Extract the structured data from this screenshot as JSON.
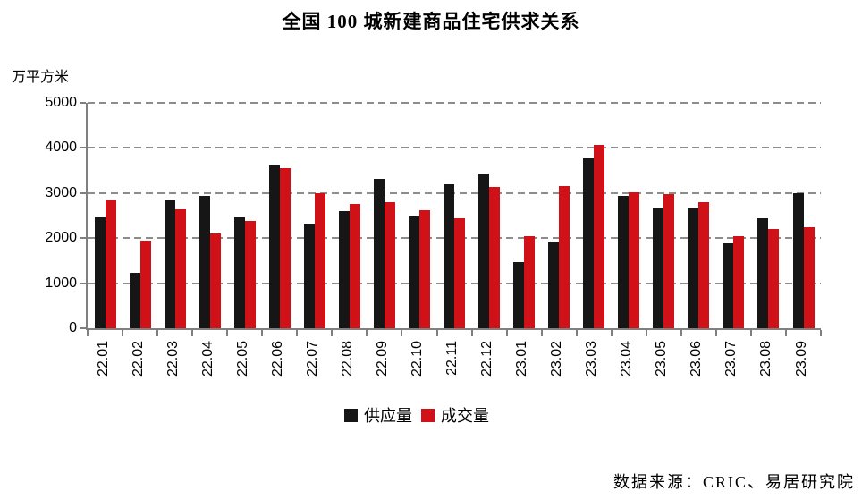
{
  "title": "全国 100 城新建商品住宅供求关系",
  "y_axis": {
    "unit_label": "万平方米",
    "tick_labels": [
      "5000",
      "4000",
      "3000",
      "2000",
      "1000",
      "0"
    ]
  },
  "legend": {
    "supply_label": "供应量",
    "transaction_label": "成交量"
  },
  "source_note": "数据来源：CRIC、易居研究院",
  "colors": {
    "supply": "#161616",
    "transaction": "#d01118",
    "grid": "#8c8c8c",
    "axis": "#7f7f7f"
  },
  "chart_data": {
    "type": "bar",
    "title": "全国 100 城新建商品住宅供求关系",
    "ylabel": "万平方米",
    "ylim": [
      0,
      5000
    ],
    "ytick_step": 1000,
    "grid": "horizontal-dashed",
    "legend_position": "bottom",
    "categories": [
      "22.01",
      "22.02",
      "22.03",
      "22.04",
      "22.05",
      "22.06",
      "22.07",
      "22.08",
      "22.09",
      "22.10",
      "22.11",
      "22.12",
      "23.01",
      "23.02",
      "23.03",
      "23.04",
      "23.05",
      "23.06",
      "23.07",
      "23.08",
      "23.09"
    ],
    "series": [
      {
        "name": "供应量",
        "color": "#161616",
        "values": [
          2470,
          1230,
          2840,
          2930,
          2470,
          3610,
          2330,
          2610,
          3310,
          2490,
          3200,
          3430,
          1460,
          1900,
          3770,
          2930,
          2670,
          2680,
          1890,
          2450,
          2990
        ]
      },
      {
        "name": "成交量",
        "color": "#d01118",
        "values": [
          2840,
          1950,
          2640,
          2110,
          2380,
          3550,
          3000,
          2760,
          2800,
          2620,
          2450,
          3130,
          2050,
          3150,
          4060,
          3020,
          2970,
          2790,
          2050,
          2200,
          2250
        ]
      }
    ]
  }
}
